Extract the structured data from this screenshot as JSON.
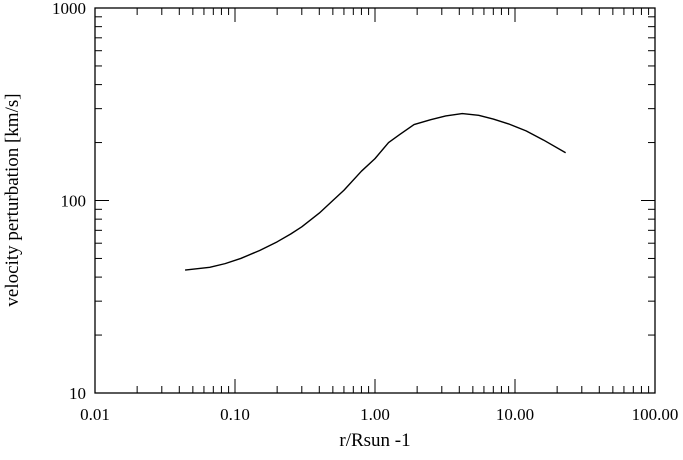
{
  "chart_data": {
    "type": "line",
    "title": "",
    "xlabel": "r/Rsun -1",
    "ylabel": "velocity perturbation [km/s]",
    "x_scale": "log",
    "y_scale": "log",
    "xlim": [
      0.01,
      100
    ],
    "ylim": [
      10,
      1000
    ],
    "grid": false,
    "legend": "none",
    "x_major_ticks": [
      0.01,
      0.1,
      1,
      10,
      100
    ],
    "x_tick_labels": [
      "0.01",
      "0.10",
      "1.00",
      "10.00",
      "100.00"
    ],
    "y_major_ticks": [
      10,
      100,
      1000
    ],
    "y_tick_labels": [
      "10",
      "100",
      "1000"
    ],
    "line_color": "#000000",
    "series": [
      {
        "x": [
          0.044,
          0.066,
          0.085,
          0.11,
          0.15,
          0.2,
          0.25,
          0.3,
          0.4,
          0.5,
          0.6,
          0.8,
          1.0,
          1.25,
          1.5,
          1.9,
          2.5,
          3.2,
          4.2,
          5.5,
          7.0,
          9.0,
          12.0,
          16.0,
          23.0
        ],
        "y": [
          43.5,
          45,
          47,
          50,
          55,
          61,
          67,
          73,
          86,
          100,
          113,
          142,
          165,
          200,
          220,
          248,
          263,
          275,
          283,
          277,
          265,
          250,
          230,
          206,
          177
        ]
      }
    ]
  }
}
